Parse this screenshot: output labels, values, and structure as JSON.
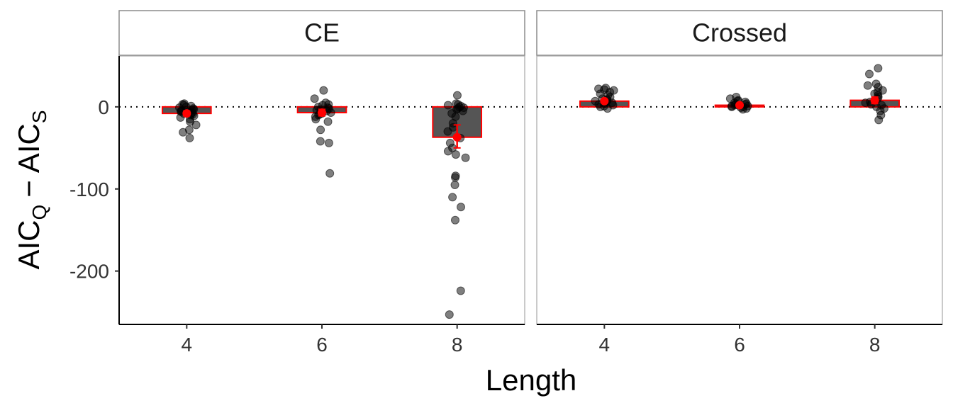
{
  "chart_data": {
    "type": "bar",
    "xlabel": "Length",
    "ylabel": {
      "base1": "AIC",
      "sub1": "Q",
      "minus": "−",
      "base2": "AIC",
      "sub2": "S"
    },
    "categories": [
      "4",
      "6",
      "8"
    ],
    "ylim": [
      -265,
      62
    ],
    "yticks": [
      0,
      -100,
      -200
    ],
    "ytick_labels": [
      "0",
      "-100",
      "-200"
    ],
    "reference_line": 0,
    "grid": false,
    "colors": {
      "bar_fill": "#555555",
      "bar_outline": "#ff0000",
      "mean_point": "#ff0000",
      "jitter_point": "#000000"
    },
    "panels": [
      {
        "label": "CE",
        "bars": [
          {
            "category": "4",
            "value": -8,
            "err_low": -11,
            "err_high": -5
          },
          {
            "category": "6",
            "value": -7,
            "err_low": -11,
            "err_high": -3
          },
          {
            "category": "8",
            "value": -37,
            "err_low": -50,
            "err_high": -22
          }
        ],
        "points": [
          {
            "category": "4",
            "values": [
              -38,
              -31,
              -28,
              -22,
              -18,
              -15,
              -13,
              -11,
              -10,
              -9,
              -8,
              -8,
              -7,
              -6,
              -6,
              -5,
              -5,
              -4,
              -3,
              -2,
              -1,
              0,
              1,
              2,
              3,
              4
            ]
          },
          {
            "category": "6",
            "values": [
              -81,
              -44,
              -42,
              -28,
              -18,
              -15,
              -12,
              -10,
              -9,
              -8,
              -7,
              -6,
              -5,
              -4,
              -3,
              -2,
              -1,
              0,
              2,
              3,
              5,
              10,
              20
            ]
          },
          {
            "category": "8",
            "values": [
              -253,
              -224,
              -138,
              -122,
              -110,
              -95,
              -86,
              -84,
              -62,
              -58,
              -54,
              -50,
              -44,
              -38,
              -30,
              -25,
              -20,
              -12,
              -8,
              -5,
              -3,
              -2,
              -1,
              0,
              1,
              2,
              3,
              4,
              14
            ]
          }
        ]
      },
      {
        "label": "Crossed",
        "bars": [
          {
            "category": "4",
            "value": 7,
            "err_low": 5,
            "err_high": 9
          },
          {
            "category": "6",
            "value": 2,
            "err_low": 1,
            "err_high": 3
          },
          {
            "category": "8",
            "value": 8,
            "err_low": 4,
            "err_high": 12
          }
        ],
        "points": [
          {
            "category": "4",
            "values": [
              -2,
              0,
              1,
              2,
              3,
              4,
              5,
              6,
              7,
              8,
              9,
              10,
              12,
              14,
              16,
              18,
              20,
              21,
              22,
              23
            ]
          },
          {
            "category": "6",
            "values": [
              -3,
              -2,
              -1,
              0,
              0,
              1,
              1,
              2,
              2,
              3,
              3,
              4,
              5,
              6,
              7,
              8,
              10,
              12
            ]
          },
          {
            "category": "8",
            "values": [
              -16,
              -10,
              -5,
              -2,
              0,
              2,
              3,
              5,
              6,
              8,
              10,
              12,
              14,
              16,
              18,
              20,
              24,
              26,
              28,
              40,
              47
            ]
          }
        ]
      }
    ]
  }
}
